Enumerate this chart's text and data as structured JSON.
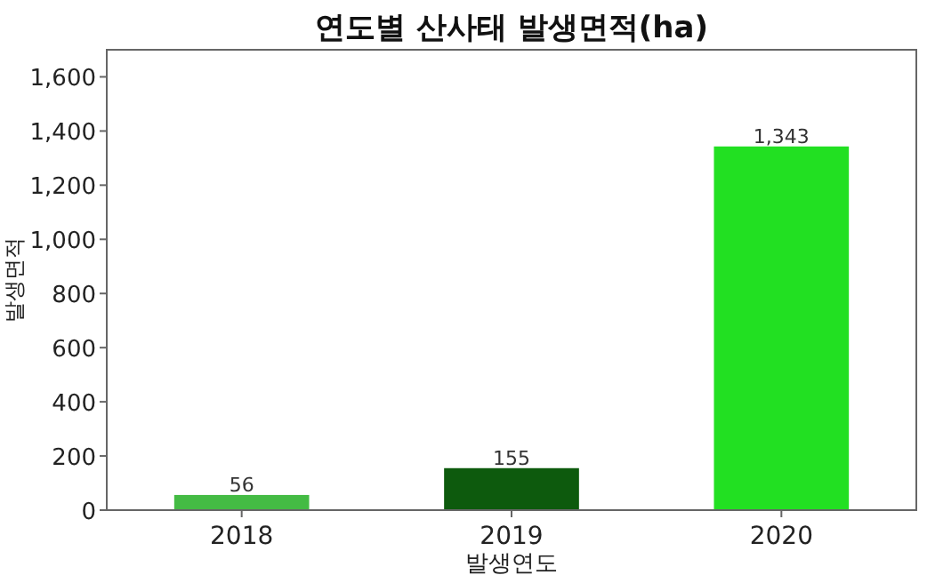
{
  "chart_data": {
    "type": "bar",
    "title": "연도별 산사태 발생면적(ha)",
    "xlabel": "발생연도",
    "ylabel": "발생면적",
    "categories": [
      "2018",
      "2019",
      "2020"
    ],
    "values": [
      56,
      155,
      1343
    ],
    "colors": [
      "#44bb44",
      "#0d5a0d",
      "#22e022"
    ],
    "value_labels": [
      "56",
      "155",
      "1,343"
    ],
    "ylim": [
      0,
      1700
    ],
    "yticks": [
      0,
      200,
      400,
      600,
      800,
      {
        "value": 1000,
        "label": "1,000"
      },
      {
        "value": 1200,
        "label": "1,200"
      },
      {
        "value": 1400,
        "label": "1,400"
      },
      {
        "value": 1600,
        "label": "1,600"
      }
    ],
    "grid": false
  }
}
